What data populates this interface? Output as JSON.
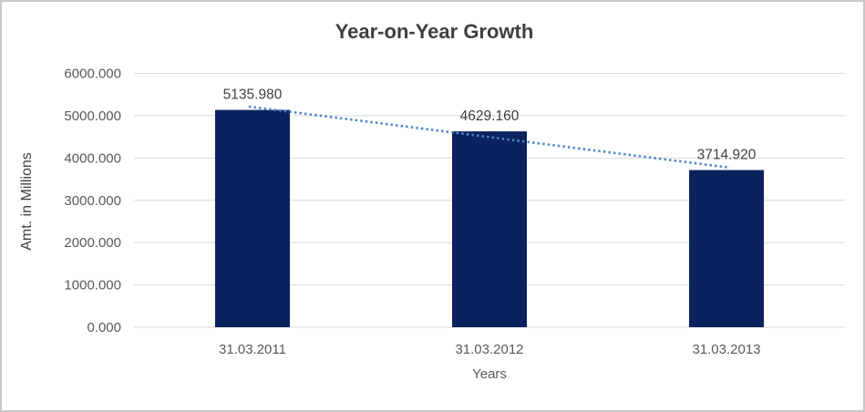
{
  "chart_data": {
    "type": "bar",
    "title": "Year-on-Year Growth",
    "categories": [
      "31.03.2011",
      "31.03.2012",
      "31.03.2013"
    ],
    "values": [
      5135.98,
      4629.16,
      3714.92
    ],
    "data_labels": [
      "5135.980",
      "4629.160",
      "3714.920"
    ],
    "xlabel": "Years",
    "ylabel": "Amt. in Millions",
    "ylim": [
      0,
      6000
    ],
    "y_tick_labels": [
      "0.000",
      "1000.000",
      "2000.000",
      "3000.000",
      "4000.000",
      "5000.000",
      "6000.000"
    ],
    "grid": true,
    "legend": "none",
    "trendline": {
      "type": "linear",
      "style": "dotted"
    },
    "colors": {
      "bar": "#0a235f",
      "trendline": "#4e86c6",
      "gridline": "#d9d9d9",
      "title_text": "#3f3f3f",
      "axis_tick_text": "#595959",
      "data_label_text": "#404040",
      "axis_title_text": "#404040",
      "frame_border": "#c9c9c9",
      "background": "#ffffff"
    }
  }
}
